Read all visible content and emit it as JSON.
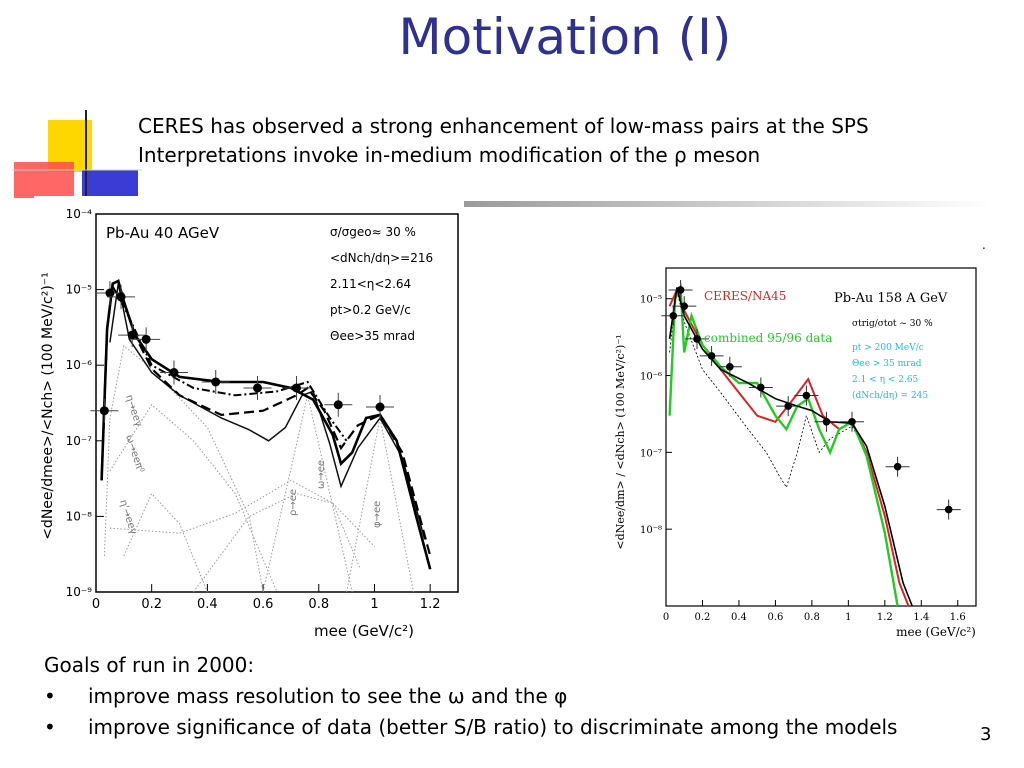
{
  "slide": {
    "title": "Motivation (I)",
    "intro_lines": [
      "CERES has observed a strong enhancement of low-mass pairs at the SPS",
      "Interpretations invoke in-medium modification of the ρ meson"
    ],
    "goals_heading": "Goals of run in 2000:",
    "bullets": [
      "improve mass resolution to see the ω and the φ",
      "improve significance of data (better S/B ratio) to discriminate among the models"
    ],
    "bullet_symbol": "•",
    "page_number": "3",
    "stray_mark": "."
  },
  "colors": {
    "title": "#2e3192",
    "deco_yellow": "#ffd700",
    "deco_blue": "#3333cc",
    "deco_red": "#ff3333"
  },
  "left_plot": {
    "system_label": "Pb-Au 40 AGeV",
    "cuts": [
      "σ/σgeo≈ 30 %",
      "<dNch/dη>=216",
      "2.11<η<2.64",
      "pt>0.2 GeV/c",
      "Θee>35 mrad"
    ],
    "ylabel": "<dNee/dmee>/<Nch> (100 MeV/c²)⁻¹",
    "xlabel": "mee (GeV/c²)",
    "x_ticks": [
      "0",
      "0.2",
      "0.4",
      "0.6",
      "0.8",
      "1",
      "1.2"
    ],
    "y_ticks": [
      "10⁻⁴",
      "10⁻⁵",
      "10⁻⁶",
      "10⁻⁷",
      "10⁻⁸",
      "10⁻⁹"
    ],
    "decay_labels": [
      "η→eeγ",
      "ω→eeπ⁰",
      "η'→eeγ",
      "ρ→ee",
      "ω→ee",
      "φ→ee"
    ],
    "xlim": [
      0,
      1.3
    ],
    "ylim_log10": [
      -9,
      -4
    ],
    "data_points": [
      {
        "x": 0.03,
        "y": 2.5e-07
      },
      {
        "x": 0.05,
        "y": 9e-06
      },
      {
        "x": 0.09,
        "y": 8e-06
      },
      {
        "x": 0.13,
        "y": 2.5e-06
      },
      {
        "x": 0.18,
        "y": 2.2e-06
      },
      {
        "x": 0.28,
        "y": 8e-07
      },
      {
        "x": 0.43,
        "y": 6e-07
      },
      {
        "x": 0.58,
        "y": 5e-07
      },
      {
        "x": 0.72,
        "y": 5e-07
      },
      {
        "x": 0.87,
        "y": 3e-07
      },
      {
        "x": 1.02,
        "y": 2.8e-07
      }
    ]
  },
  "right_plot": {
    "legend_red": "CERES/NA45",
    "legend_green": "combined 95/96 data",
    "system_label": "Pb-Au 158 A GeV",
    "cuts": [
      "σtrig/σtot ~ 30 %",
      "pt > 200 MeV/c",
      "Θee > 35 mrad",
      "2.1 < η < 2.65",
      "(dNch/dη) = 245"
    ],
    "ylabel": "<dNee/dm> / <dNch> (100 MeV/c²)⁻¹",
    "xlabel": "mee (GeV/c²)",
    "x_ticks": [
      "0",
      "0.2",
      "0.4",
      "0.6",
      "0.8",
      "1",
      "1.2",
      "1.4",
      "1.6"
    ],
    "y_ticks": [
      "10⁻⁵",
      "10⁻⁶",
      "10⁻⁷",
      "10⁻⁸"
    ],
    "xlim": [
      0,
      1.7
    ],
    "ylim_log10": [
      -9,
      -4.6
    ],
    "colors": {
      "red": "#dd2222",
      "green": "#22cc22"
    },
    "data_points": [
      {
        "x": 0.04,
        "y": 6e-06
      },
      {
        "x": 0.08,
        "y": 1.3e-05
      },
      {
        "x": 0.1,
        "y": 8e-06
      },
      {
        "x": 0.17,
        "y": 3e-06
      },
      {
        "x": 0.25,
        "y": 1.8e-06
      },
      {
        "x": 0.35,
        "y": 1.3e-06
      },
      {
        "x": 0.52,
        "y": 7e-07
      },
      {
        "x": 0.67,
        "y": 4e-07
      },
      {
        "x": 0.77,
        "y": 5.5e-07
      },
      {
        "x": 0.88,
        "y": 2.5e-07
      },
      {
        "x": 1.02,
        "y": 2.5e-07
      },
      {
        "x": 1.27,
        "y": 6.5e-08
      },
      {
        "x": 1.55,
        "y": 1.8e-08
      }
    ]
  }
}
